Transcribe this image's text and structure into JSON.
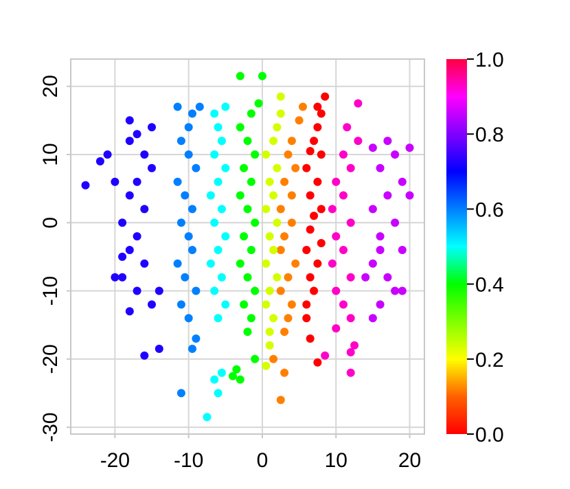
{
  "chart_data": {
    "type": "scatter",
    "title": "",
    "xlabel": "",
    "ylabel": "",
    "xlim": [
      -26,
      22
    ],
    "ylim": [
      -31,
      24
    ],
    "xticks": [
      "-20",
      "-10",
      "0",
      "10",
      "20"
    ],
    "yticks": [
      "-30",
      "-20",
      "-10",
      "0",
      "10",
      "20"
    ],
    "grid": true,
    "colorbar": {
      "range": [
        0.0,
        1.0
      ],
      "ticks": [
        "0.0",
        "0.2",
        "0.4",
        "0.6",
        "0.8",
        "1.0"
      ],
      "colormap": "rainbow",
      "colors": [
        "#ff0000",
        "#ff8000",
        "#ffff00",
        "#00ff00",
        "#00ffff",
        "#0080ff",
        "#0000ff",
        "#8000ff",
        "#ff00ff",
        "#ff0040"
      ]
    },
    "series": [
      {
        "color_value": 0.05,
        "color": "#ff0000",
        "x_center": 7.0,
        "points": [
          [
            6.5,
            -17
          ],
          [
            7.5,
            -20.5
          ],
          [
            6,
            -12
          ],
          [
            7,
            -10
          ],
          [
            6.5,
            -8
          ],
          [
            7.5,
            -6
          ],
          [
            6,
            -4
          ],
          [
            8,
            -3
          ],
          [
            6.5,
            -1
          ],
          [
            7,
            1
          ],
          [
            8,
            2
          ],
          [
            6.5,
            4
          ],
          [
            7.5,
            6
          ],
          [
            6,
            8
          ],
          [
            8,
            10
          ],
          [
            7,
            12
          ],
          [
            7.5,
            14
          ],
          [
            8,
            16
          ],
          [
            8.5,
            18.5
          ],
          [
            7.5,
            17
          ],
          [
            6.5,
            10.5
          ],
          [
            6,
            -14
          ]
        ]
      },
      {
        "color_value": 0.15,
        "color": "#ff8000",
        "x_center": 3.5,
        "points": [
          [
            2.5,
            -26
          ],
          [
            3,
            -22
          ],
          [
            1.5,
            -20
          ],
          [
            3.5,
            -14
          ],
          [
            4,
            -12
          ],
          [
            2.5,
            -10
          ],
          [
            3.5,
            -8
          ],
          [
            4.5,
            -6
          ],
          [
            2.5,
            -4
          ],
          [
            3,
            -2
          ],
          [
            4,
            0
          ],
          [
            2.5,
            2
          ],
          [
            4,
            4
          ],
          [
            3,
            6
          ],
          [
            4.5,
            8
          ],
          [
            3.5,
            10
          ],
          [
            4,
            12
          ],
          [
            5,
            15
          ],
          [
            5.5,
            17
          ],
          [
            3,
            -16
          ]
        ]
      },
      {
        "color_value": 0.25,
        "color": "#d4ff00",
        "x_center": 1.0,
        "points": [
          [
            0.5,
            -21
          ],
          [
            1,
            -16
          ],
          [
            1.5,
            -14
          ],
          [
            0.5,
            -12
          ],
          [
            1,
            -10
          ],
          [
            2,
            -8
          ],
          [
            0.5,
            -6
          ],
          [
            1.5,
            -4
          ],
          [
            1,
            -2
          ],
          [
            2,
            0
          ],
          [
            0.5,
            2
          ],
          [
            1.5,
            4
          ],
          [
            1,
            6
          ],
          [
            2,
            8
          ],
          [
            0.5,
            10
          ],
          [
            1.5,
            12
          ],
          [
            2,
            14
          ],
          [
            2.5,
            16
          ],
          [
            2.5,
            18.5
          ],
          [
            1,
            -18
          ]
        ]
      },
      {
        "color_value": 0.35,
        "color": "#00ff00",
        "x_center": -2.0,
        "points": [
          [
            -1,
            -20
          ],
          [
            -2,
            -16
          ],
          [
            -1.5,
            -14
          ],
          [
            -2.5,
            -12
          ],
          [
            -1,
            -10
          ],
          [
            -2,
            -8
          ],
          [
            -3,
            -6
          ],
          [
            -1.5,
            -4
          ],
          [
            -2.5,
            -2
          ],
          [
            -1,
            0
          ],
          [
            -2,
            2
          ],
          [
            -3,
            4
          ],
          [
            -1.5,
            6
          ],
          [
            -2.5,
            8
          ],
          [
            -1,
            10
          ],
          [
            -2,
            12
          ],
          [
            -3,
            14
          ],
          [
            -1.5,
            16
          ],
          [
            -3,
            21.5
          ],
          [
            -3.5,
            -21.5
          ],
          [
            -3,
            -23
          ],
          [
            -4,
            -22.5
          ],
          [
            0,
            21.5
          ],
          [
            -0.5,
            17.5
          ]
        ]
      },
      {
        "color_value": 0.45,
        "color": "#00ffff",
        "x_center": -6.0,
        "points": [
          [
            -7.5,
            -28.5
          ],
          [
            -6,
            -25
          ],
          [
            -6.5,
            -23
          ],
          [
            -5.5,
            -22
          ],
          [
            -6,
            -14
          ],
          [
            -5,
            -12
          ],
          [
            -6.5,
            -10
          ],
          [
            -5.5,
            -8
          ],
          [
            -7,
            -6
          ],
          [
            -6,
            -4
          ],
          [
            -5,
            -2
          ],
          [
            -6.5,
            0
          ],
          [
            -5.5,
            2
          ],
          [
            -7,
            4
          ],
          [
            -6,
            6
          ],
          [
            -5,
            8
          ],
          [
            -6.5,
            10
          ],
          [
            -5.5,
            12
          ],
          [
            -6,
            14
          ],
          [
            -6.5,
            16
          ],
          [
            -5,
            17
          ]
        ]
      },
      {
        "color_value": 0.55,
        "color": "#0080ff",
        "x_center": -10.0,
        "points": [
          [
            -11,
            -25
          ],
          [
            -9,
            -17
          ],
          [
            -9.5,
            -18.5
          ],
          [
            -10,
            -14
          ],
          [
            -11,
            -12
          ],
          [
            -9,
            -10
          ],
          [
            -10.5,
            -8
          ],
          [
            -11.5,
            -6
          ],
          [
            -9.5,
            -4
          ],
          [
            -10,
            -2
          ],
          [
            -11,
            0
          ],
          [
            -9.5,
            2
          ],
          [
            -10.5,
            4
          ],
          [
            -11.5,
            6
          ],
          [
            -9,
            8
          ],
          [
            -10,
            10
          ],
          [
            -11,
            12
          ],
          [
            -10,
            14
          ],
          [
            -9.5,
            16
          ],
          [
            -11.5,
            17
          ],
          [
            -8.5,
            17
          ]
        ]
      },
      {
        "color_value": 0.65,
        "color": "#2000ff",
        "x_center": -17.0,
        "points": [
          [
            -24,
            5.5
          ],
          [
            -21,
            10
          ],
          [
            -22,
            9
          ],
          [
            -20,
            6
          ],
          [
            -18,
            15
          ],
          [
            -17,
            13
          ],
          [
            -15,
            14
          ],
          [
            -14,
            -18.5
          ],
          [
            -16,
            -19.5
          ],
          [
            -18,
            -13
          ],
          [
            -17,
            -10
          ],
          [
            -19,
            -8
          ],
          [
            -20,
            -8
          ],
          [
            -16,
            -6
          ],
          [
            -18,
            -4
          ],
          [
            -17,
            -2
          ],
          [
            -19,
            0
          ],
          [
            -16,
            2
          ],
          [
            -18,
            4
          ],
          [
            -17,
            6
          ],
          [
            -15,
            8
          ],
          [
            -16,
            10
          ],
          [
            -18,
            12
          ],
          [
            -14,
            -10
          ],
          [
            -15,
            -12
          ],
          [
            -19,
            -5
          ]
        ]
      },
      {
        "color_value": 0.85,
        "color": "#ff00c8",
        "x_center": 11.0,
        "points": [
          [
            8.5,
            -19.5
          ],
          [
            10,
            -15.5
          ],
          [
            12,
            -19
          ],
          [
            12,
            -22
          ],
          [
            12.5,
            -18
          ],
          [
            11,
            -12
          ],
          [
            10,
            -10
          ],
          [
            12,
            -8
          ],
          [
            9.5,
            -6
          ],
          [
            11,
            -4
          ],
          [
            10,
            -2
          ],
          [
            12,
            0
          ],
          [
            9.5,
            2
          ],
          [
            11,
            4
          ],
          [
            10,
            6
          ],
          [
            12,
            8
          ],
          [
            11,
            10
          ],
          [
            13,
            12
          ],
          [
            11.5,
            14
          ],
          [
            13,
            17.5
          ],
          [
            12,
            -14
          ]
        ]
      },
      {
        "color_value": 0.9,
        "color": "#c800ff",
        "x_center": 17.0,
        "points": [
          [
            15,
            -14
          ],
          [
            16,
            -12
          ],
          [
            18,
            -10
          ],
          [
            17,
            -8
          ],
          [
            15,
            -6
          ],
          [
            19,
            -4
          ],
          [
            16,
            -2
          ],
          [
            18,
            0
          ],
          [
            15,
            2
          ],
          [
            17,
            4
          ],
          [
            19,
            6
          ],
          [
            16,
            8
          ],
          [
            18,
            10
          ],
          [
            17,
            12
          ],
          [
            15,
            11
          ],
          [
            20,
            4
          ],
          [
            20,
            11
          ],
          [
            14,
            -8
          ],
          [
            19,
            -10
          ],
          [
            16,
            -4
          ]
        ]
      }
    ]
  }
}
